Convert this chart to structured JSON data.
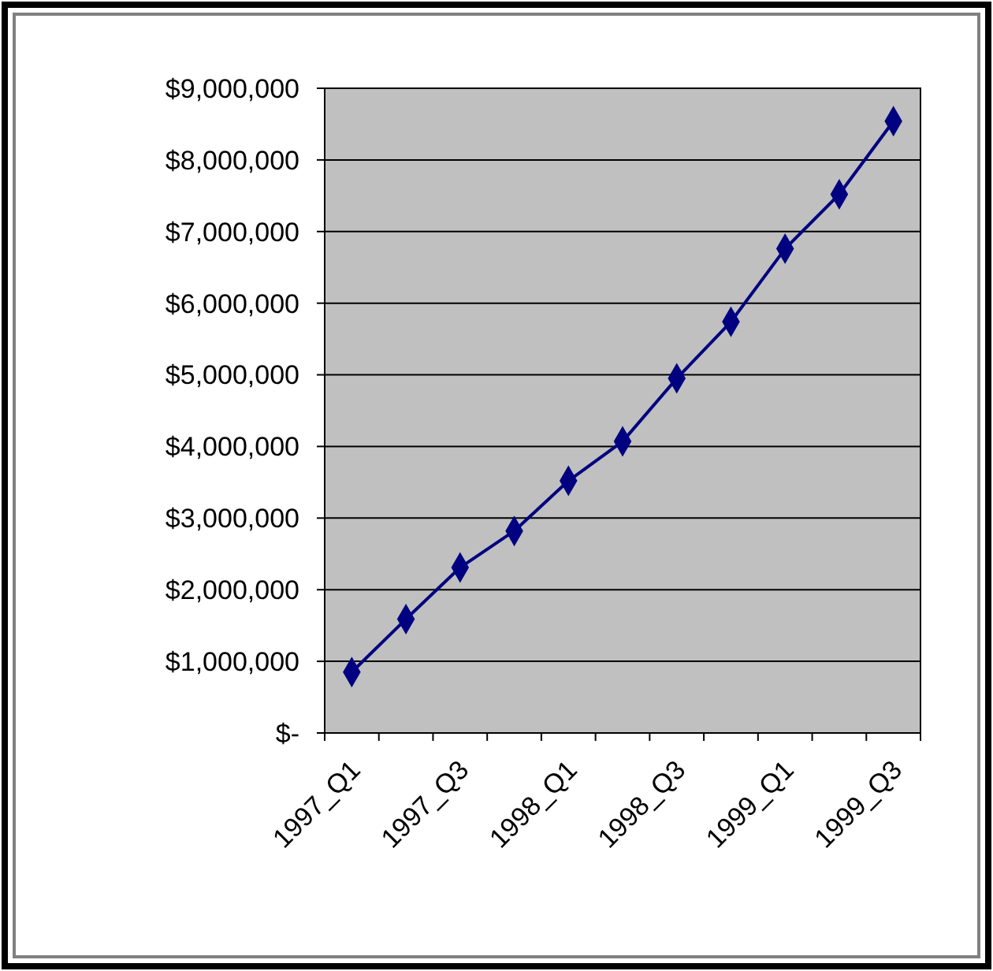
{
  "chart_data": {
    "type": "line",
    "categories": [
      "1997_Q1",
      null,
      "1997_Q3",
      null,
      "1998_Q1",
      null,
      "1998_Q3",
      null,
      "1999_Q1",
      null,
      "1999_Q3"
    ],
    "series": [
      {
        "color": "#000080",
        "values": [
          850000,
          1590000,
          2310000,
          2820000,
          3520000,
          4070000,
          4950000,
          5740000,
          6760000,
          7520000,
          8540000
        ]
      }
    ],
    "ylim": [
      0,
      9000000
    ],
    "yticks": [
      {
        "value": 0,
        "label": "$-"
      },
      {
        "value": 1000000,
        "label": "$1,000,000"
      },
      {
        "value": 2000000,
        "label": "$2,000,000"
      },
      {
        "value": 3000000,
        "label": "$3,000,000"
      },
      {
        "value": 4000000,
        "label": "$4,000,000"
      },
      {
        "value": 5000000,
        "label": "$5,000,000"
      },
      {
        "value": 6000000,
        "label": "$6,000,000"
      },
      {
        "value": 7000000,
        "label": "$7,000,000"
      },
      {
        "value": 8000000,
        "label": "$8,000,000"
      },
      {
        "value": 9000000,
        "label": "$9,000,000"
      }
    ],
    "grid": "y",
    "marker": "diamond"
  }
}
